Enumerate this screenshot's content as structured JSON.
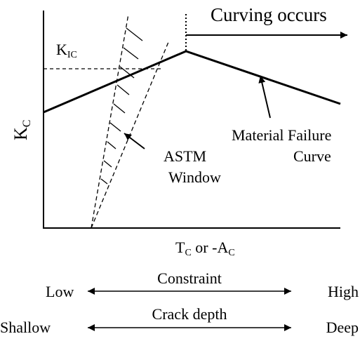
{
  "curving_label": "Curving occurs",
  "kic_label": {
    "base": "K",
    "sub": "IC"
  },
  "y_axis_label": {
    "base": "K",
    "sub": "C"
  },
  "x_axis_label": {
    "base1": "T",
    "sub1": "C",
    "mid": " or -A",
    "sub2": "C"
  },
  "material_failure": {
    "line1": "Material Failure",
    "line2": "Curve"
  },
  "astm_window": {
    "line1": "ASTM",
    "line2": "Window"
  },
  "constraint": {
    "title": "Constraint",
    "low": "Low",
    "high": "High"
  },
  "crack_depth": {
    "title": "Crack depth",
    "low": "Shallow",
    "high": "Deep"
  }
}
